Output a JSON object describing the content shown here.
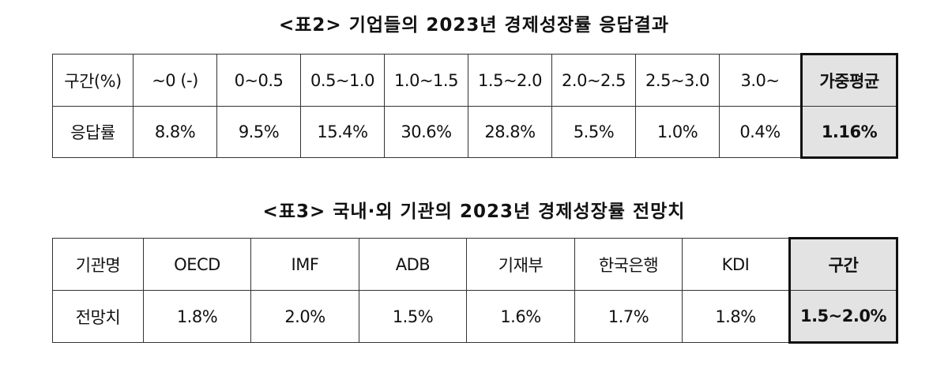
{
  "table2": {
    "caption": "<표2> 기업들의 2023년 경제성장률 응답결과",
    "header": [
      "구간(%)",
      "~0 (-)",
      "0~0.5",
      "0.5~1.0",
      "1.0~1.5",
      "1.5~2.0",
      "2.0~2.5",
      "2.5~3.0",
      "3.0~",
      "가중평균"
    ],
    "row": [
      "응답률",
      "8.8%",
      "9.5%",
      "15.4%",
      "30.6%",
      "28.8%",
      "5.5%",
      "1.0%",
      "0.4%",
      "1.16%"
    ]
  },
  "table3": {
    "caption": "<표3> 국내·외 기관의 2023년 경제성장률 전망치",
    "header": [
      "기관명",
      "OECD",
      "IMF",
      "ADB",
      "기재부",
      "한국은행",
      "KDI",
      "구간"
    ],
    "row": [
      "전망치",
      "1.8%",
      "2.0%",
      "1.5%",
      "1.6%",
      "1.7%",
      "1.8%",
      "1.5~2.0%"
    ]
  },
  "colors": {
    "highlight_fill": "#e3e3e3",
    "border": "#333333"
  }
}
